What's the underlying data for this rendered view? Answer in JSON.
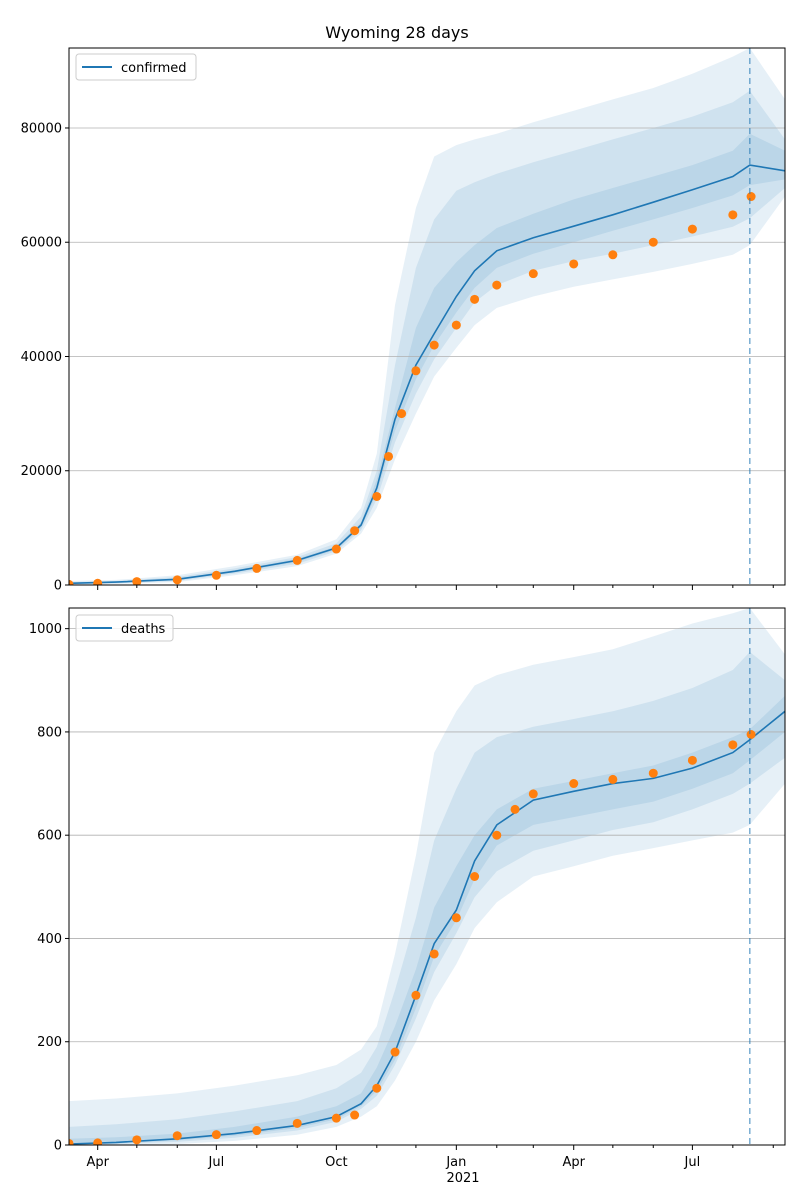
{
  "chart_data": {
    "title": "Wyoming 28 days",
    "colors": {
      "model_line": "#1f77b4",
      "observed": "#ff7f0e",
      "band": "#1f77b4",
      "grid": "#b0b0b0"
    },
    "x_axis": {
      "type": "date",
      "range": [
        "2020-03-10",
        "2021-09-10"
      ],
      "tick_labels": [
        "Apr",
        "Jul",
        "Oct",
        "Jan",
        "Apr",
        "Jul"
      ],
      "tick_dates": [
        "2020-04-01",
        "2020-07-01",
        "2020-10-01",
        "2021-01-01",
        "2021-04-01",
        "2021-07-01"
      ],
      "year_label": "2021",
      "forecast_start": "2021-08-14"
    },
    "panels": [
      {
        "type": "line",
        "legend": "confirmed",
        "legend_placement": "top-left",
        "ylim": [
          0,
          94000
        ],
        "yticks": [
          0,
          20000,
          40000,
          60000,
          80000
        ],
        "grid": true,
        "model": {
          "x": [
            "2020-03-10",
            "2020-04-15",
            "2020-06-01",
            "2020-07-15",
            "2020-09-01",
            "2020-10-01",
            "2020-10-20",
            "2020-11-01",
            "2020-11-15",
            "2020-12-01",
            "2020-12-15",
            "2021-01-01",
            "2021-01-15",
            "2021-02-01",
            "2021-03-01",
            "2021-04-01",
            "2021-05-01",
            "2021-06-01",
            "2021-07-01",
            "2021-08-01",
            "2021-08-14",
            "2021-09-10"
          ],
          "y": [
            300,
            500,
            1000,
            2400,
            4300,
            6500,
            10500,
            17000,
            29000,
            38500,
            44000,
            50500,
            55000,
            58500,
            60800,
            62800,
            64800,
            67000,
            69200,
            71500,
            73500,
            72500
          ],
          "bands": [
            {
              "lo": [
                0,
                200,
                500,
                1700,
                3300,
                5500,
                9000,
                13500,
                22000,
                30000,
                36500,
                41500,
                45500,
                48500,
                50500,
                52200,
                53500,
                54800,
                56200,
                57800,
                59500,
                68000
              ],
              "hi": [
                700,
                900,
                1700,
                3300,
                5300,
                8000,
                13500,
                23000,
                49000,
                66000,
                75000,
                77000,
                78000,
                79000,
                81000,
                83000,
                85000,
                87000,
                89500,
                92500,
                94000,
                85000
              ]
            },
            {
              "lo": [
                100,
                300,
                700,
                2000,
                3700,
                5900,
                9600,
                15000,
                25000,
                33500,
                39500,
                45000,
                49500,
                52500,
                55000,
                56700,
                58000,
                59500,
                61000,
                62700,
                64200,
                69500
              ],
              "hi": [
                500,
                700,
                1400,
                2900,
                4900,
                7300,
                12000,
                20000,
                38500,
                55500,
                64000,
                69000,
                70500,
                72000,
                74000,
                76000,
                78000,
                80000,
                82000,
                84500,
                86500,
                78000
              ]
            },
            {
              "lo": [
                200,
                400,
                850,
                2200,
                4000,
                6200,
                10000,
                16000,
                27000,
                36000,
                42000,
                47700,
                52000,
                55500,
                58000,
                60000,
                62000,
                64000,
                66000,
                68200,
                70000,
                71000
              ],
              "hi": [
                400,
                600,
                1150,
                2600,
                4600,
                6800,
                11000,
                18500,
                31000,
                45000,
                52000,
                56500,
                59500,
                62500,
                65000,
                67500,
                69500,
                71500,
                73500,
                76000,
                79000,
                76000
              ]
            }
          ]
        },
        "observed": {
          "x": [
            "2020-03-10",
            "2020-04-01",
            "2020-05-01",
            "2020-06-01",
            "2020-07-01",
            "2020-08-01",
            "2020-09-01",
            "2020-10-01",
            "2020-10-15",
            "2020-11-01",
            "2020-11-10",
            "2020-11-20",
            "2020-12-01",
            "2020-12-15",
            "2021-01-01",
            "2021-01-15",
            "2021-02-01",
            "2021-03-01",
            "2021-04-01",
            "2021-05-01",
            "2021-06-01",
            "2021-07-01",
            "2021-08-01",
            "2021-08-15"
          ],
          "y": [
            100,
            300,
            600,
            900,
            1700,
            2900,
            4300,
            6300,
            9500,
            15500,
            22500,
            30000,
            37500,
            42000,
            45500,
            50000,
            52500,
            54500,
            56200,
            57800,
            60000,
            62300,
            64800,
            68000
          ]
        }
      },
      {
        "type": "line",
        "legend": "deaths",
        "legend_placement": "top-left",
        "ylim": [
          0,
          1040
        ],
        "yticks": [
          0,
          200,
          400,
          600,
          800,
          1000
        ],
        "grid": true,
        "model": {
          "x": [
            "2020-03-10",
            "2020-04-15",
            "2020-06-01",
            "2020-07-15",
            "2020-09-01",
            "2020-10-01",
            "2020-10-20",
            "2020-11-01",
            "2020-11-15",
            "2020-12-01",
            "2020-12-15",
            "2021-01-01",
            "2021-01-15",
            "2021-02-01",
            "2021-03-01",
            "2021-04-01",
            "2021-05-01",
            "2021-06-01",
            "2021-07-01",
            "2021-08-01",
            "2021-08-14",
            "2021-09-10"
          ],
          "y": [
            2,
            5,
            12,
            22,
            38,
            55,
            80,
            115,
            180,
            290,
            390,
            455,
            550,
            620,
            668,
            685,
            700,
            710,
            730,
            760,
            785,
            840
          ],
          "bands": [
            {
              "lo": [
                0,
                0,
                2,
                8,
                20,
                35,
                55,
                75,
                125,
                200,
                280,
                350,
                420,
                470,
                520,
                540,
                560,
                575,
                590,
                605,
                620,
                700
              ],
              "hi": [
                85,
                90,
                100,
                115,
                135,
                155,
                185,
                230,
                370,
                560,
                760,
                840,
                890,
                910,
                930,
                945,
                960,
                985,
                1010,
                1030,
                1040,
                950
              ]
            },
            {
              "lo": [
                0,
                2,
                6,
                14,
                28,
                45,
                70,
                95,
                155,
                245,
                335,
                410,
                480,
                530,
                570,
                590,
                610,
                625,
                650,
                680,
                700,
                750
              ],
              "hi": [
                35,
                40,
                50,
                65,
                85,
                110,
                140,
                190,
                300,
                440,
                590,
                690,
                760,
                790,
                810,
                825,
                840,
                860,
                885,
                920,
                955,
                900
              ]
            },
            {
              "lo": [
                0,
                3,
                9,
                18,
                33,
                50,
                75,
                105,
                165,
                265,
                365,
                435,
                515,
                580,
                620,
                635,
                650,
                665,
                690,
                720,
                745,
                800
              ],
              "hi": [
                12,
                15,
                22,
                35,
                55,
                75,
                100,
                150,
                230,
                340,
                460,
                540,
                600,
                650,
                690,
                705,
                720,
                735,
                760,
                790,
                805,
                870
              ]
            }
          ]
        },
        "observed": {
          "x": [
            "2020-03-10",
            "2020-04-01",
            "2020-05-01",
            "2020-06-01",
            "2020-07-01",
            "2020-08-01",
            "2020-09-01",
            "2020-10-01",
            "2020-10-15",
            "2020-11-01",
            "2020-11-15",
            "2020-12-01",
            "2020-12-15",
            "2021-01-01",
            "2021-01-15",
            "2021-02-01",
            "2021-02-15",
            "2021-03-01",
            "2021-04-01",
            "2021-05-01",
            "2021-06-01",
            "2021-07-01",
            "2021-08-01",
            "2021-08-15"
          ],
          "y": [
            3,
            4,
            10,
            18,
            20,
            28,
            42,
            52,
            58,
            110,
            180,
            290,
            370,
            440,
            520,
            600,
            650,
            680,
            700,
            708,
            720,
            745,
            775,
            795
          ]
        }
      }
    ]
  }
}
